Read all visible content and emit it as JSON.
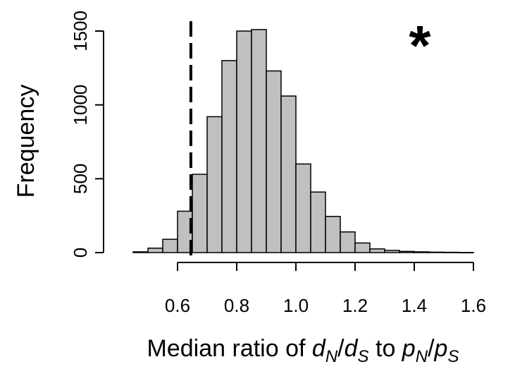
{
  "chart_data": {
    "type": "histogram",
    "title": "",
    "xlabel_parts": [
      "Median ratio of ",
      "d",
      "N",
      "/",
      "d",
      "S",
      " to ",
      "p",
      "N",
      "/",
      "p",
      "S"
    ],
    "ylabel": "Frequency",
    "significance_marker": "*",
    "x_ticks": [
      0.6,
      0.8,
      1.0,
      1.2,
      1.4,
      1.6
    ],
    "x_tick_labels": [
      "0.6",
      "0.8",
      "1.0",
      "1.2",
      "1.4",
      "1.6"
    ],
    "y_ticks": [
      0,
      500,
      1000,
      1500
    ],
    "y_tick_labels": [
      "0",
      "500",
      "1000",
      "1500"
    ],
    "xlim": [
      0.45,
      1.6
    ],
    "ylim": [
      0,
      1600
    ],
    "bin_width": 0.05,
    "bins": [
      {
        "x0": 0.45,
        "x1": 0.5,
        "count": 5
      },
      {
        "x0": 0.5,
        "x1": 0.55,
        "count": 30
      },
      {
        "x0": 0.55,
        "x1": 0.6,
        "count": 90
      },
      {
        "x0": 0.6,
        "x1": 0.65,
        "count": 280
      },
      {
        "x0": 0.65,
        "x1": 0.7,
        "count": 530
      },
      {
        "x0": 0.7,
        "x1": 0.75,
        "count": 920
      },
      {
        "x0": 0.75,
        "x1": 0.8,
        "count": 1300
      },
      {
        "x0": 0.8,
        "x1": 0.85,
        "count": 1500
      },
      {
        "x0": 0.85,
        "x1": 0.9,
        "count": 1510
      },
      {
        "x0": 0.9,
        "x1": 0.95,
        "count": 1230
      },
      {
        "x0": 0.95,
        "x1": 1.0,
        "count": 1060
      },
      {
        "x0": 1.0,
        "x1": 1.05,
        "count": 600
      },
      {
        "x0": 1.05,
        "x1": 1.1,
        "count": 410
      },
      {
        "x0": 1.1,
        "x1": 1.15,
        "count": 245
      },
      {
        "x0": 1.15,
        "x1": 1.2,
        "count": 140
      },
      {
        "x0": 1.2,
        "x1": 1.25,
        "count": 65
      },
      {
        "x0": 1.25,
        "x1": 1.3,
        "count": 25
      },
      {
        "x0": 1.3,
        "x1": 1.35,
        "count": 15
      },
      {
        "x0": 1.35,
        "x1": 1.4,
        "count": 8
      },
      {
        "x0": 1.4,
        "x1": 1.45,
        "count": 5
      },
      {
        "x0": 1.45,
        "x1": 1.5,
        "count": 3
      },
      {
        "x0": 1.5,
        "x1": 1.55,
        "count": 2
      },
      {
        "x0": 1.55,
        "x1": 1.6,
        "count": 1
      }
    ],
    "reference_line_x": 0.645,
    "reference_line_style": "dashed",
    "bar_fill": "#c0c0c0",
    "bar_stroke": "#000000",
    "grid": false,
    "legend": "none"
  }
}
